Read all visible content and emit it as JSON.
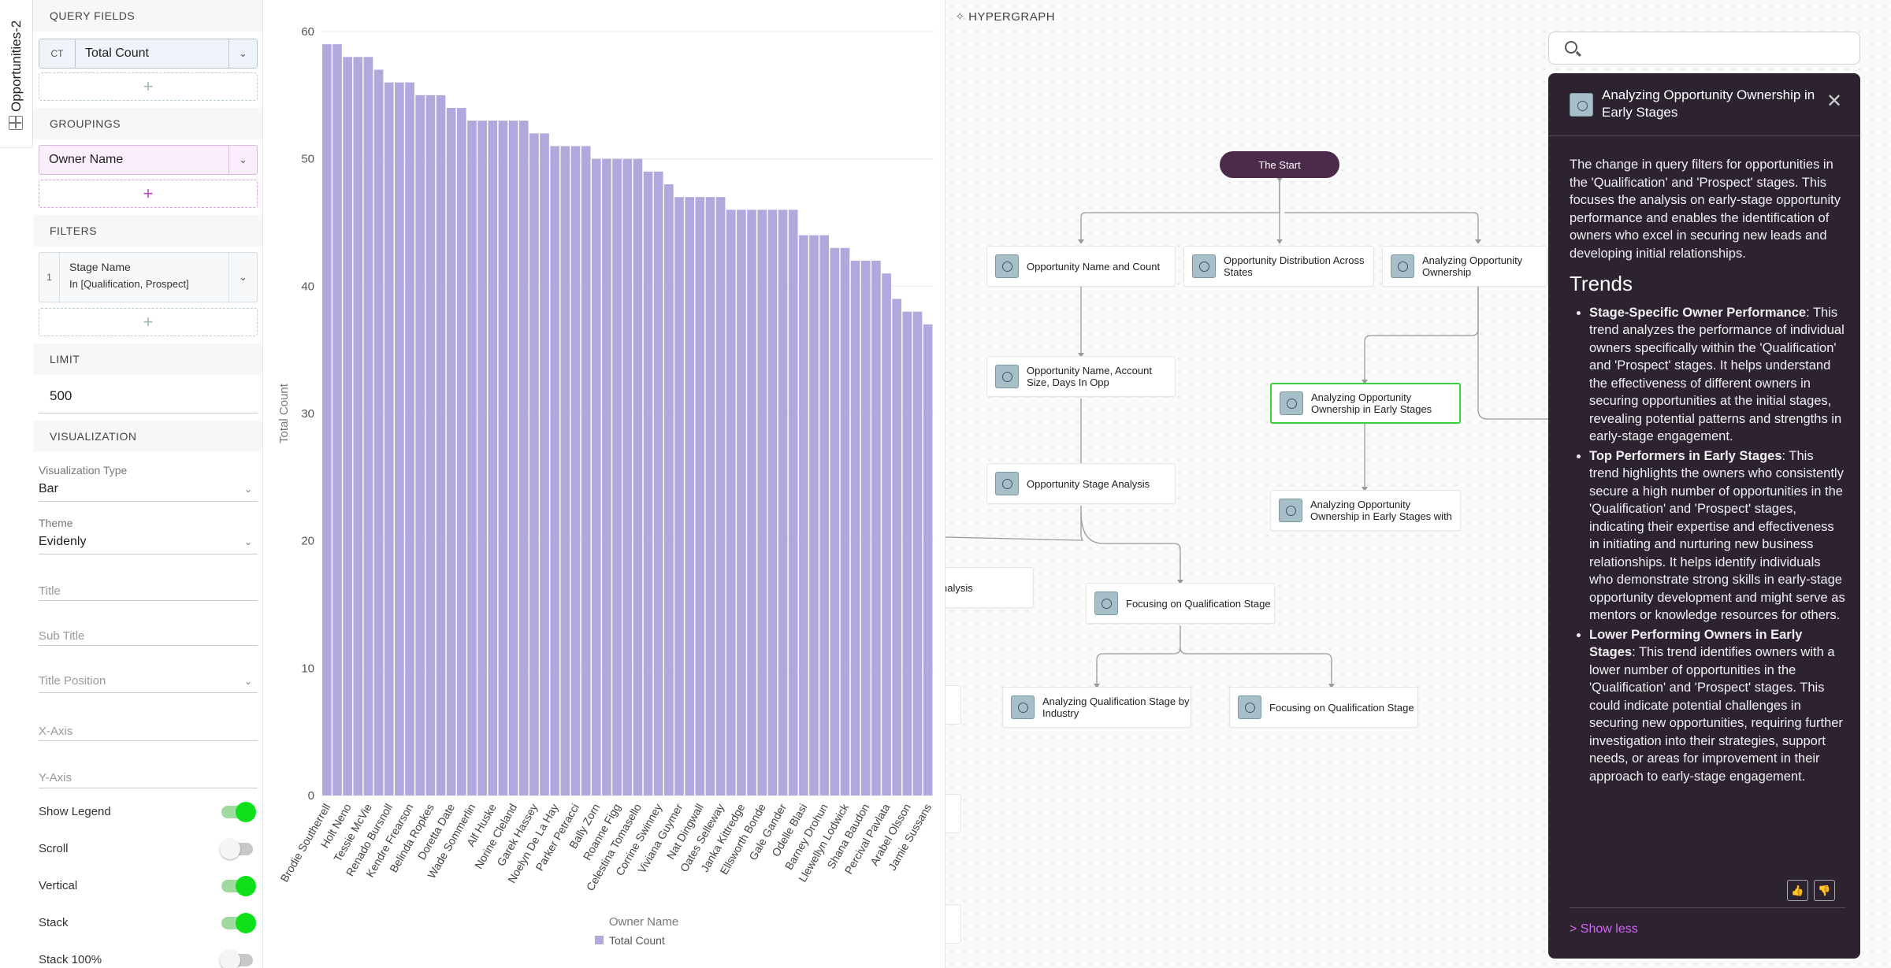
{
  "tab": {
    "label": "Opportunities-2"
  },
  "panel": {
    "query_fields": {
      "header": "QUERY FIELDS",
      "field": {
        "tag": "CT",
        "value": "Total Count"
      }
    },
    "groupings": {
      "header": "GROUPINGS",
      "field": {
        "value": "Owner Name"
      }
    },
    "filters": {
      "header": "FILTERS",
      "item": {
        "index": "1",
        "field": "Stage Name",
        "condition": "In [Qualification, Prospect]"
      }
    },
    "limit": {
      "header": "LIMIT",
      "value": "500"
    },
    "visualization": {
      "header": "VISUALIZATION",
      "type_label": "Visualization Type",
      "type_value": "Bar",
      "theme_label": "Theme",
      "theme_value": "Evidenly",
      "title_placeholder": "Title",
      "subtitle_placeholder": "Sub Title",
      "title_position_placeholder": "Title Position",
      "xaxis_placeholder": "X-Axis",
      "yaxis_placeholder": "Y-Axis",
      "toggles": [
        {
          "label": "Show Legend",
          "on": true
        },
        {
          "label": "Scroll",
          "on": false
        },
        {
          "label": "Vertical",
          "on": true
        },
        {
          "label": "Stack",
          "on": true
        },
        {
          "label": "Stack 100%",
          "on": false
        }
      ]
    }
  },
  "chart_data": {
    "type": "bar",
    "xlabel": "Owner Name",
    "ylabel": "Total Count",
    "ylim": [
      0,
      60
    ],
    "yticks": [
      0,
      10,
      20,
      30,
      40,
      50,
      60
    ],
    "bar_color": "#b3a8dd",
    "legend": "bottom",
    "series": [
      {
        "name": "Total Count",
        "values": [
          59,
          59,
          58,
          58,
          58,
          57,
          56,
          56,
          56,
          55,
          55,
          55,
          54,
          54,
          53,
          53,
          53,
          53,
          53,
          53,
          52,
          52,
          51,
          51,
          51,
          51,
          50,
          50,
          50,
          50,
          50,
          49,
          49,
          48,
          47,
          47,
          47,
          47,
          47,
          46,
          46,
          46,
          46,
          46,
          46,
          46,
          44,
          44,
          44,
          43,
          43,
          42,
          42,
          42,
          41,
          39,
          38,
          38,
          37
        ]
      }
    ],
    "labeled_categories": [
      "Brodie Southerrell",
      "Holt Neno",
      "Tessie McVie",
      "Renado Bursnoll",
      "Kendre Frearson",
      "Belinda Ropkes",
      "Doretta Date",
      "Wade Sommerlin",
      "Alf Huske",
      "Norine Cleland",
      "Garek Hassey",
      "Noelyn De La Hay",
      "Parker Petracci",
      "Bally Zorn",
      "Roanne Figg",
      "Celestina Tomasello",
      "Corrine Swinney",
      "Viviana Guymer",
      "Nat Dingwall",
      "Oates Selleway",
      "Janka Kittredge",
      "Ellsworth Bonde",
      "Gale Gander",
      "Odelle Blasi",
      "Barney Drohun",
      "Llewellyn Lodwick",
      "Shana Baudon",
      "Percival Pavlata",
      "Arabel Olsson",
      "Jamie Sussans"
    ]
  },
  "graph": {
    "title": "HYPERGRAPH",
    "start_label": "The Start",
    "nodes": [
      {
        "label": "Opportunity Name and Count"
      },
      {
        "label": "Opportunity Distribution Across States"
      },
      {
        "label": "Analyzing Opportunity Ownership"
      },
      {
        "label": "Opportunity Name, Account Size, Days In Opp"
      },
      {
        "label": "Analyzing Opportunity Ownership in Early Stages"
      },
      {
        "label": "Opportunity Stage Analysis"
      },
      {
        "label": "Analyzing Opportunity Ownership in Early Stages with"
      },
      {
        "label": "nalysis"
      },
      {
        "label": "Focusing on Qualification Stage"
      },
      {
        "label": "Analyzing Qualification Stage by Industry"
      },
      {
        "label": "Focusing on Qualification Stage"
      }
    ]
  },
  "search": {
    "value": ""
  },
  "card": {
    "title": "Analyzing Opportunity Ownership in Early Stages",
    "summary": "The change in query filters for opportunities in the 'Qualification' and 'Prospect' stages. This focuses the analysis on early-stage opportunity performance and enables the identification of owners who excel in securing new leads and developing initial relationships.",
    "trends_heading": "Trends",
    "trends": [
      {
        "title": "Stage-Specific Owner Performance",
        "text": ": This trend analyzes the performance of individual owners specifically within the 'Qualification' and 'Prospect' stages. It helps understand the effectiveness of different owners in securing opportunities at the initial stages, revealing potential patterns and strengths in early-stage engagement."
      },
      {
        "title": "Top Performers in Early Stages",
        "text": ": This trend highlights the owners who consistently secure a high number of opportunities in the 'Qualification' and 'Prospect' stages, indicating their expertise and effectiveness in initiating and nurturing new business relationships. It helps identify individuals who demonstrate strong skills in early-stage opportunity development and might serve as mentors or knowledge resources for others."
      },
      {
        "title": "Lower Performing Owners in Early Stages",
        "text": ": This trend identifies owners with a lower number of opportunities in the 'Qualification' and 'Prospect' stages. This could indicate potential challenges in securing new opportunities, requiring further investigation into their strategies, support needs, or areas for improvement in their approach to early-stage engagement."
      }
    ],
    "show_less": "> Show less"
  }
}
